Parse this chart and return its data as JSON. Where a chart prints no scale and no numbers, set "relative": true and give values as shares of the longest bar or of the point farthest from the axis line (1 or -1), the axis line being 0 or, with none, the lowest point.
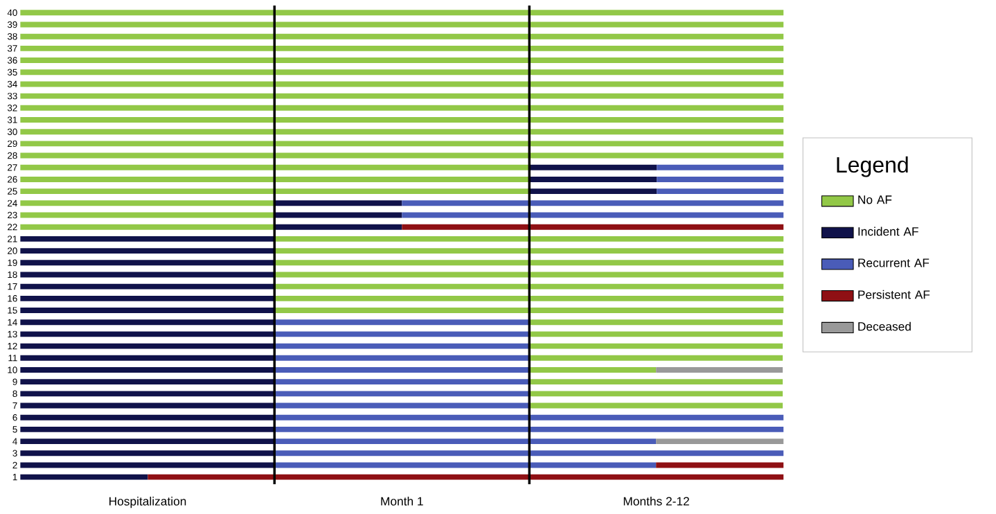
{
  "chart_data": {
    "type": "bar",
    "orientation": "horizontal",
    "relative": true,
    "stacked": true,
    "categories": [
      "40",
      "39",
      "38",
      "37",
      "36",
      "35",
      "34",
      "33",
      "32",
      "31",
      "30",
      "29",
      "28",
      "27",
      "26",
      "25",
      "24",
      "23",
      "22",
      "21",
      "20",
      "19",
      "18",
      "17",
      "16",
      "15",
      "14",
      "13",
      "12",
      "11",
      "10",
      "9",
      "8",
      "7",
      "6",
      "5",
      "4",
      "3",
      "2",
      "1"
    ],
    "annotations": [
      "Hospitalization",
      "Month 1",
      "Months 2-12"
    ],
    "ref_lines": [
      {
        "axis": "x",
        "value": 0.333,
        "color": "#000000"
      },
      {
        "axis": "x",
        "value": 0.667,
        "color": "#000000"
      }
    ],
    "legend": "right",
    "legend_title": "Legend",
    "series": [
      {
        "colors": [
          "#92c847",
          "#92c847",
          "#92c847",
          "#92c847",
          "#92c847",
          "#92c847",
          "#92c847",
          "#92c847",
          "#92c847",
          "#92c847",
          "#92c847",
          "#92c847",
          "#92c847",
          "#92c847",
          "#92c847",
          "#92c847",
          "#92c847",
          "#92c847",
          "#92c847",
          "#10124a",
          "#10124a",
          "#10124a",
          "#10124a",
          "#10124a",
          "#10124a",
          "#10124a",
          "#10124a",
          "#10124a",
          "#10124a",
          "#10124a",
          "#10124a",
          "#10124a",
          "#10124a",
          "#10124a",
          "#10124a",
          "#10124a",
          "#10124a",
          "#10124a",
          "#10124a",
          "#10124a"
        ],
        "values": [
          1,
          1,
          1,
          1,
          1,
          1,
          1,
          1,
          1,
          1,
          1,
          1,
          1,
          0.667,
          0.667,
          0.667,
          0.333,
          0.333,
          0.333,
          0.333,
          0.333,
          0.333,
          0.333,
          0.333,
          0.333,
          0.333,
          0.333,
          0.333,
          0.333,
          0.333,
          0.333,
          0.333,
          0.333,
          0.333,
          0.333,
          0.333,
          0.333,
          0.333,
          0.333,
          0.167
        ]
      },
      {
        "colors": [
          null,
          null,
          null,
          null,
          null,
          null,
          null,
          null,
          null,
          null,
          null,
          null,
          null,
          "#10124a",
          "#10124a",
          "#10124a",
          "#10124a",
          "#10124a",
          "#10124a",
          "#92c847",
          "#92c847",
          "#92c847",
          "#92c847",
          "#92c847",
          "#92c847",
          "#92c847",
          "#4a5cb8",
          "#4a5cb8",
          "#4a5cb8",
          "#4a5cb8",
          "#4a5cb8",
          "#4a5cb8",
          "#4a5cb8",
          "#4a5cb8",
          "#4a5cb8",
          "#4a5cb8",
          "#4a5cb8",
          "#4a5cb8",
          "#4a5cb8",
          "#8f1014"
        ],
        "values": [
          null,
          null,
          null,
          null,
          null,
          null,
          null,
          null,
          null,
          null,
          null,
          null,
          null,
          0.167,
          0.167,
          0.167,
          0.167,
          0.167,
          0.167,
          0.667,
          0.667,
          0.667,
          0.667,
          0.667,
          0.667,
          0.667,
          0.333,
          0.333,
          0.333,
          0.333,
          0.333,
          0.333,
          0.333,
          0.333,
          0.667,
          0.667,
          0.5,
          0.667,
          0.5,
          0.833
        ]
      },
      {
        "colors": [
          null,
          null,
          null,
          null,
          null,
          null,
          null,
          null,
          null,
          null,
          null,
          null,
          null,
          "#4a5cb8",
          "#4a5cb8",
          "#4a5cb8",
          "#4a5cb8",
          "#4a5cb8",
          "#8f1014",
          null,
          null,
          null,
          null,
          null,
          null,
          null,
          "#92c847",
          "#92c847",
          "#92c847",
          "#92c847",
          "#92c847",
          "#92c847",
          "#92c847",
          "#92c847",
          null,
          null,
          "#999999",
          null,
          "#8f1014",
          null
        ],
        "values": [
          null,
          null,
          null,
          null,
          null,
          null,
          null,
          null,
          null,
          null,
          null,
          null,
          null,
          0.166,
          0.166,
          0.166,
          0.5,
          0.5,
          0.5,
          null,
          null,
          null,
          null,
          null,
          null,
          null,
          0.333,
          0.333,
          0.333,
          0.333,
          0.167,
          0.333,
          0.333,
          0.333,
          null,
          null,
          0.167,
          null,
          0.167,
          null
        ]
      },
      {
        "colors": [
          null,
          null,
          null,
          null,
          null,
          null,
          null,
          null,
          null,
          null,
          null,
          null,
          null,
          null,
          null,
          null,
          null,
          null,
          null,
          null,
          null,
          null,
          null,
          null,
          null,
          null,
          null,
          null,
          null,
          null,
          "#999999",
          null,
          null,
          null,
          null,
          null,
          null,
          null,
          null,
          null
        ],
        "values": [
          null,
          null,
          null,
          null,
          null,
          null,
          null,
          null,
          null,
          null,
          null,
          null,
          null,
          null,
          null,
          null,
          null,
          null,
          null,
          null,
          null,
          null,
          null,
          null,
          null,
          null,
          null,
          null,
          null,
          null,
          0.166,
          null,
          null,
          null,
          null,
          null,
          null,
          null,
          null,
          null
        ]
      },
      {
        "name": "No AF",
        "color": "#92c847",
        "values": [
          null,
          null,
          null,
          null,
          null,
          null,
          null,
          null,
          null,
          null,
          null,
          null,
          null,
          null,
          null,
          null,
          null,
          null,
          null,
          null,
          null,
          null,
          null,
          null,
          null,
          null,
          null,
          null,
          null,
          null,
          null,
          null,
          null,
          null,
          null,
          null,
          null,
          null,
          null,
          null
        ]
      },
      {
        "name": "Incident AF",
        "color": "#10124a",
        "values": [
          null,
          null,
          null,
          null,
          null,
          null,
          null,
          null,
          null,
          null,
          null,
          null,
          null,
          null,
          null,
          null,
          null,
          null,
          null,
          null,
          null,
          null,
          null,
          null,
          null,
          null,
          null,
          null,
          null,
          null,
          null,
          null,
          null,
          null,
          null,
          null,
          null,
          null,
          null,
          null
        ]
      },
      {
        "name": "Recurrent AF",
        "color": "#4a5cb8",
        "values": [
          null,
          null,
          null,
          null,
          null,
          null,
          null,
          null,
          null,
          null,
          null,
          null,
          null,
          null,
          null,
          null,
          null,
          null,
          null,
          null,
          null,
          null,
          null,
          null,
          null,
          null,
          null,
          null,
          null,
          null,
          null,
          null,
          null,
          null,
          null,
          null,
          null,
          null,
          null,
          null
        ]
      },
      {
        "name": "Persistent AF",
        "color": "#8f1014",
        "values": [
          null,
          null,
          null,
          null,
          null,
          null,
          null,
          null,
          null,
          null,
          null,
          null,
          null,
          null,
          null,
          null,
          null,
          null,
          null,
          null,
          null,
          null,
          null,
          null,
          null,
          null,
          null,
          null,
          null,
          null,
          null,
          null,
          null,
          null,
          null,
          null,
          null,
          null,
          null,
          null
        ]
      },
      {
        "name": "Deceased",
        "color": "#999999",
        "values": [
          null,
          null,
          null,
          null,
          null,
          null,
          null,
          null,
          null,
          null,
          null,
          null,
          null,
          null,
          null,
          null,
          null,
          null,
          null,
          null,
          null,
          null,
          null,
          null,
          null,
          null,
          null,
          null,
          null,
          null,
          null,
          null,
          null,
          null,
          null,
          null,
          null,
          null,
          null,
          null
        ]
      }
    ]
  }
}
